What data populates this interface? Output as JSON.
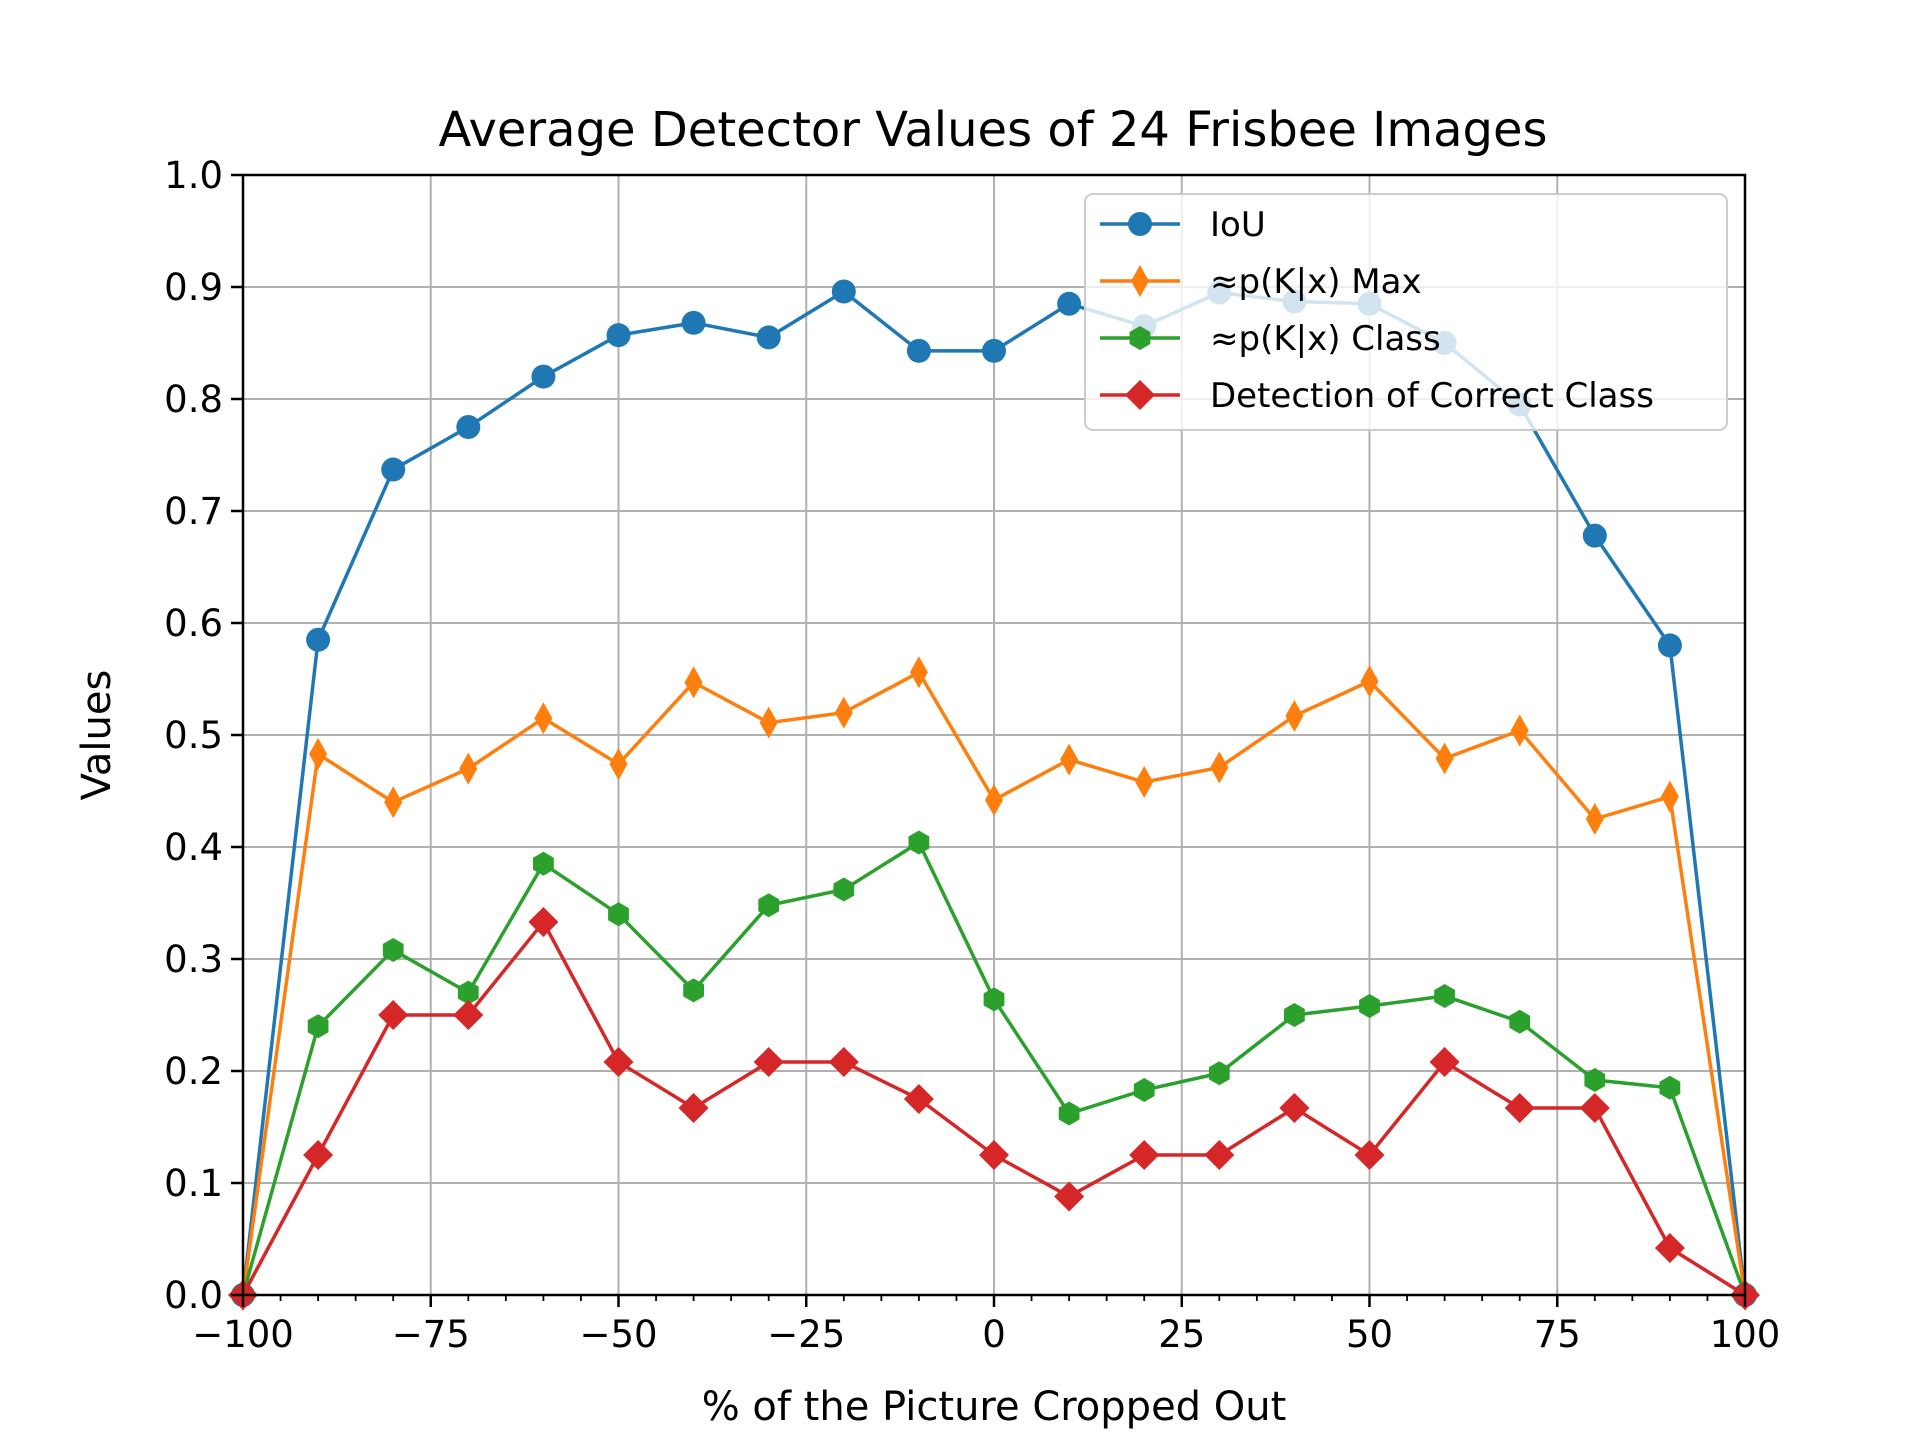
{
  "chart_data": {
    "type": "line",
    "title": "Average Detector Values of 24 Frisbee Images",
    "xlabel": "% of the Picture Cropped Out",
    "ylabel": "Values",
    "xlim": [
      -100,
      100
    ],
    "ylim": [
      0.0,
      1.0
    ],
    "grid": true,
    "legend_position": "top-right",
    "x": [
      -100,
      -90,
      -80,
      -70,
      -60,
      -50,
      -40,
      -30,
      -20,
      -10,
      0,
      10,
      20,
      30,
      40,
      50,
      60,
      70,
      80,
      90,
      100
    ],
    "xticks": [
      -100,
      -75,
      -50,
      -25,
      0,
      25,
      50,
      75,
      100
    ],
    "xtick_labels": [
      "−100",
      "−75",
      "−50",
      "−25",
      "0",
      "25",
      "50",
      "75",
      "100"
    ],
    "yticks": [
      0.0,
      0.1,
      0.2,
      0.3,
      0.4,
      0.5,
      0.6,
      0.7,
      0.8,
      0.9,
      1.0
    ],
    "ytick_labels": [
      "0.0",
      "0.1",
      "0.2",
      "0.3",
      "0.4",
      "0.5",
      "0.6",
      "0.7",
      "0.8",
      "0.9",
      "1.0"
    ],
    "series": [
      {
        "name": "IoU",
        "marker": "circle",
        "color": "#1f77b4",
        "values": [
          0.0,
          0.585,
          0.737,
          0.775,
          0.82,
          0.857,
          0.868,
          0.855,
          0.896,
          0.843,
          0.843,
          0.885,
          0.865,
          0.895,
          0.887,
          0.885,
          0.85,
          0.795,
          0.678,
          0.58,
          0.0
        ]
      },
      {
        "name": "≈p(K|x) Max",
        "marker": "thin-diamond",
        "color": "#ff7f0e",
        "values": [
          0.0,
          0.483,
          0.44,
          0.47,
          0.515,
          0.474,
          0.547,
          0.511,
          0.52,
          0.556,
          0.442,
          0.478,
          0.458,
          0.471,
          0.517,
          0.548,
          0.479,
          0.504,
          0.425,
          0.445,
          0.0
        ]
      },
      {
        "name": "≈p(K|x) Class",
        "marker": "hexagon",
        "color": "#2ca02c",
        "values": [
          0.0,
          0.24,
          0.308,
          0.27,
          0.385,
          0.34,
          0.272,
          0.348,
          0.362,
          0.404,
          0.264,
          0.162,
          0.183,
          0.198,
          0.25,
          0.258,
          0.267,
          0.244,
          0.192,
          0.185,
          0.0
        ]
      },
      {
        "name": "Detection of Correct Class",
        "marker": "diamond",
        "color": "#d62728",
        "values": [
          0.0,
          0.125,
          0.25,
          0.25,
          0.333,
          0.208,
          0.167,
          0.208,
          0.208,
          0.175,
          0.125,
          0.088,
          0.125,
          0.125,
          0.167,
          0.125,
          0.208,
          0.167,
          0.167,
          0.042,
          0.0
        ]
      }
    ]
  }
}
